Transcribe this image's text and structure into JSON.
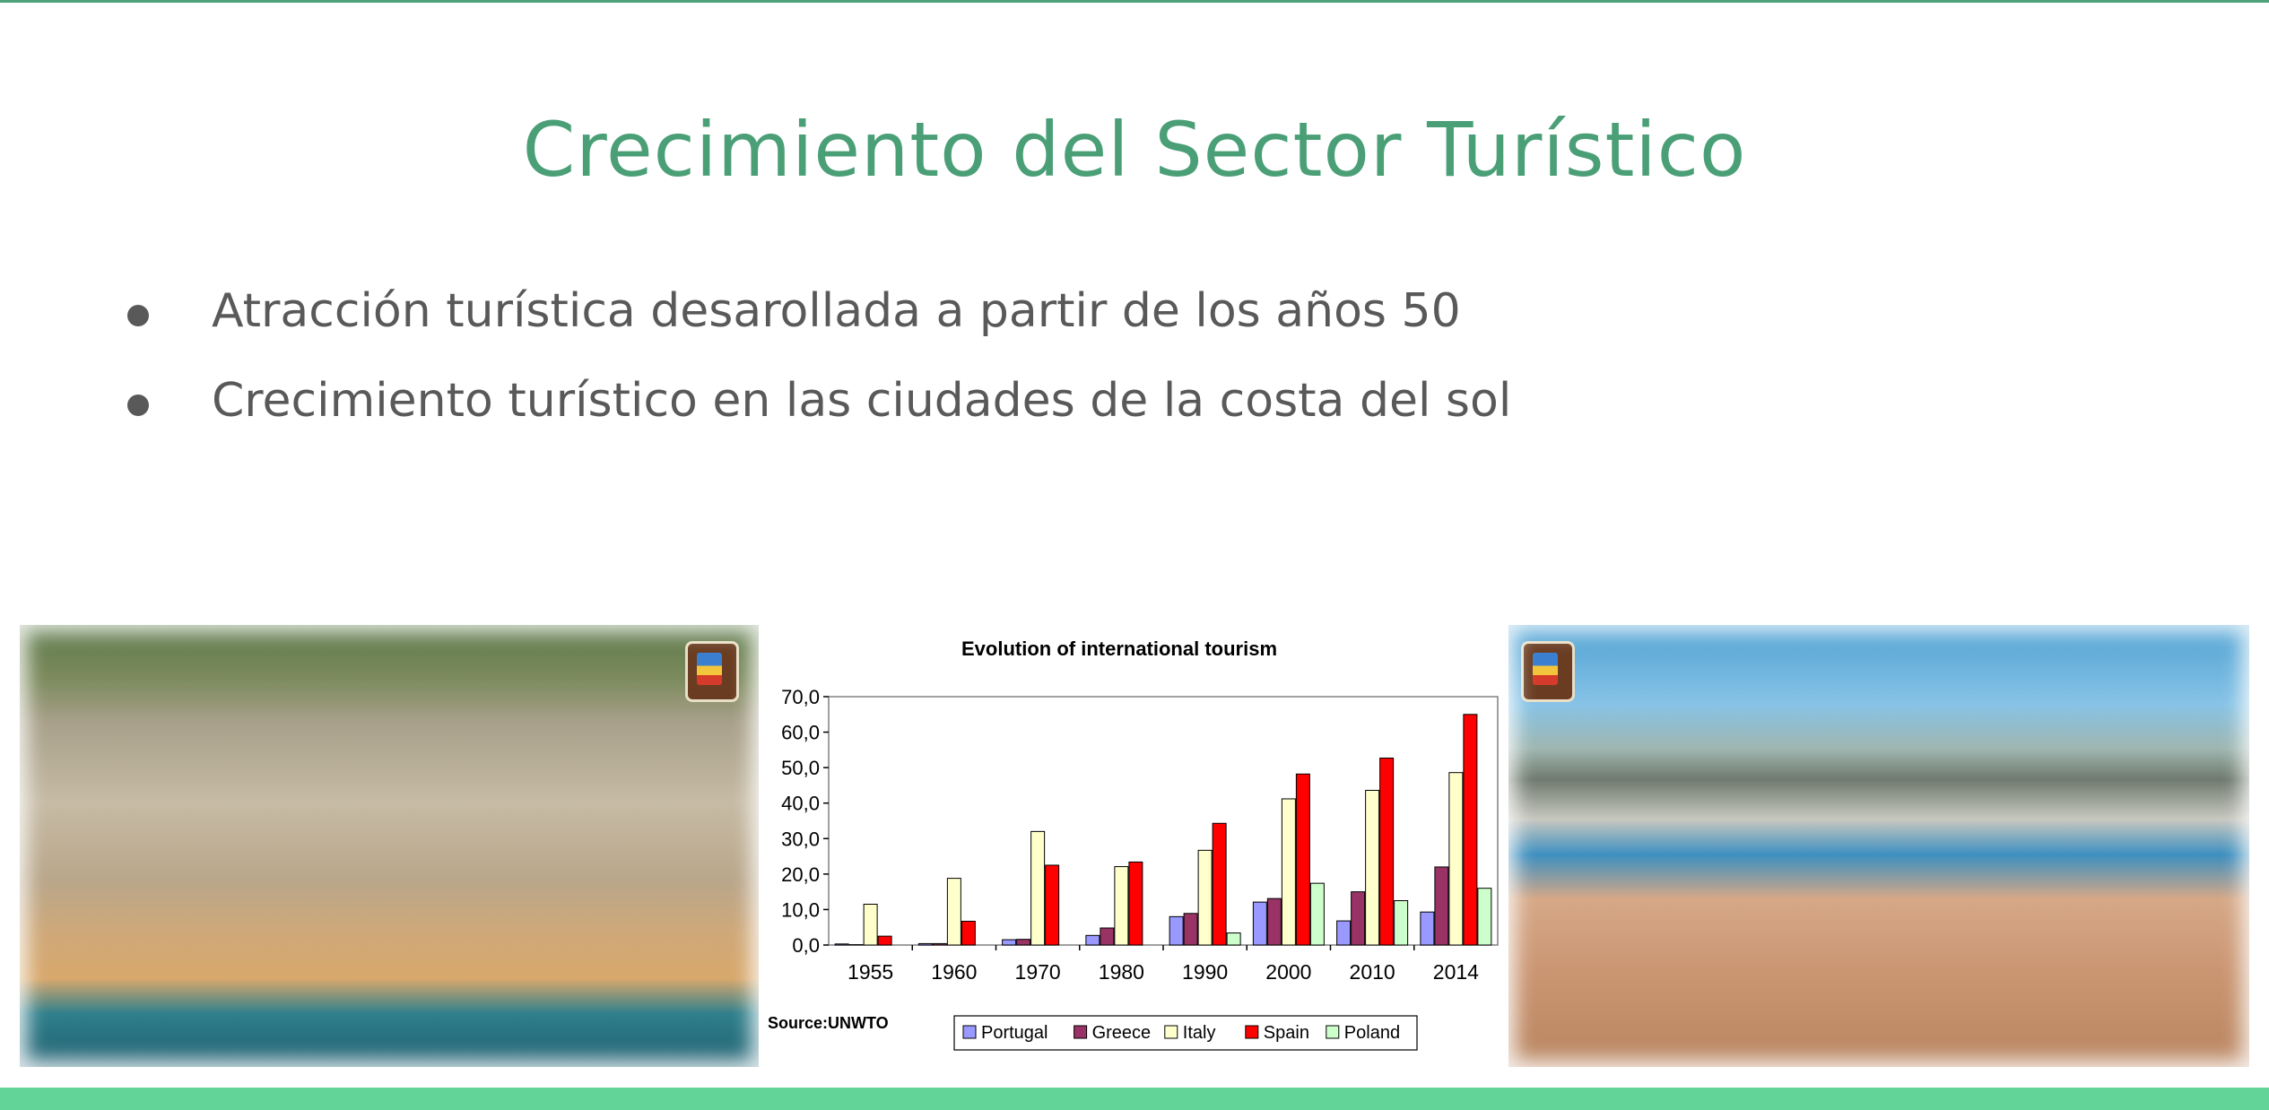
{
  "slide": {
    "title": "Crecimiento del Sector Turístico",
    "bullets": [
      "Atracción turística desarollada a partir de los años 50",
      "Crecimiento turístico en las ciudades de la costa del sol"
    ]
  },
  "colors": {
    "title": "#4a9f77",
    "bottom_band": "#62d497",
    "text": "#595959"
  },
  "chart_data": {
    "type": "bar",
    "title": "Evolution of international tourism",
    "source": "Source:UNWTO",
    "categories": [
      "1955",
      "1960",
      "1970",
      "1980",
      "1990",
      "2000",
      "2010",
      "2014"
    ],
    "ylim": [
      0,
      70
    ],
    "yticks": [
      "0,0",
      "10,0",
      "20,0",
      "30,0",
      "40,0",
      "50,0",
      "60,0",
      "70,0"
    ],
    "legend_position": "bottom",
    "series": [
      {
        "name": "Portugal",
        "color": "#9999ff",
        "values": [
          0.3,
          0.4,
          1.5,
          2.7,
          8.0,
          12.1,
          6.8,
          9.3
        ]
      },
      {
        "name": "Greece",
        "color": "#993366",
        "values": [
          0.1,
          0.4,
          1.6,
          4.8,
          8.9,
          13.1,
          15.0,
          22.0
        ]
      },
      {
        "name": "Italy",
        "color": "#ffffcc",
        "values": [
          11.5,
          18.8,
          32.0,
          22.1,
          26.7,
          41.2,
          43.6,
          48.6
        ]
      },
      {
        "name": "Spain",
        "color": "#ff0000",
        "values": [
          2.5,
          6.7,
          22.5,
          23.4,
          34.3,
          48.2,
          52.7,
          65.0
        ]
      },
      {
        "name": "Poland",
        "color": "#ccffcc",
        "values": [
          0,
          0,
          0,
          0,
          3.4,
          17.4,
          12.5,
          16.0
        ]
      }
    ]
  }
}
